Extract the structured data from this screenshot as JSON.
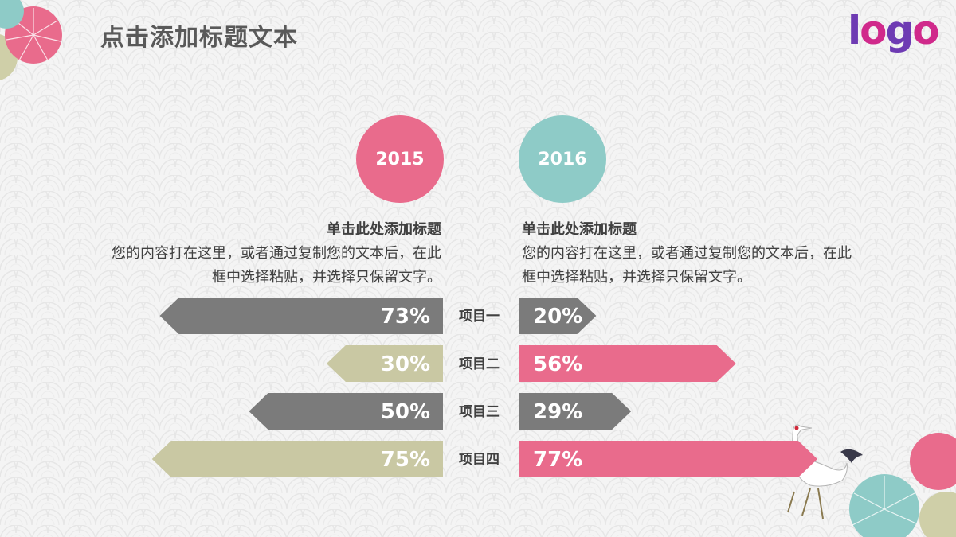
{
  "title": "点击添加标题文本",
  "logo": [
    "l",
    "o",
    "g",
    "o"
  ],
  "colors": {
    "pink": "#e96b8c",
    "teal": "#8ecbc7",
    "gray": "#7b7b7b",
    "khaki": "#c9c8a3"
  },
  "left_block": {
    "year": "2015",
    "heading": "单击此处添加标题",
    "body_line1": "您的内容打在这里，或者通过复制您的文本后，在此",
    "body_line2": "框中选择粘贴，并选择只保留文字。"
  },
  "right_block": {
    "year": "2016",
    "heading": "单击此处添加标题",
    "body_line1": "您的内容打在这里，或者通过复制您的文本后，在此",
    "body_line2": "框中选择粘贴，并选择只保留文字。"
  },
  "chart_data": {
    "type": "bar",
    "orientation": "horizontal-butterfly",
    "categories": [
      "项目一",
      "项目二",
      "项目三",
      "项目四"
    ],
    "series": [
      {
        "name": "2015",
        "values": [
          73,
          30,
          50,
          75
        ],
        "labels": [
          "73%",
          "30%",
          "50%",
          "75%"
        ]
      },
      {
        "name": "2016",
        "values": [
          20,
          56,
          29,
          77
        ],
        "labels": [
          "20%",
          "56%",
          "29%",
          "77%"
        ]
      }
    ],
    "bar_colors": [
      [
        "#7b7b7b",
        "#c9c8a3",
        "#7b7b7b",
        "#c9c8a3"
      ],
      [
        "#7b7b7b",
        "#e96b8c",
        "#7b7b7b",
        "#e96b8c"
      ]
    ],
    "xlim": [
      0,
      100
    ]
  }
}
